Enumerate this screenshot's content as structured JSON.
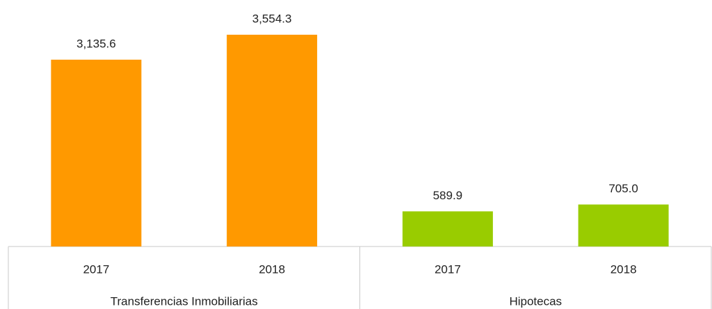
{
  "chart_data": {
    "type": "bar",
    "series": [
      {
        "name": "Transferencias Inmobiliarias",
        "color": "#FF9900",
        "categories": [
          "2017",
          "2018"
        ],
        "values": [
          3135.6,
          3554.3
        ],
        "value_labels": [
          "3,135.6",
          "3,554.3"
        ]
      },
      {
        "name": "Hipotecas",
        "color": "#99CC00",
        "categories": [
          "2017",
          "2018"
        ],
        "values": [
          589.9,
          705.0
        ],
        "value_labels": [
          "589.9",
          "705.0"
        ]
      }
    ]
  }
}
